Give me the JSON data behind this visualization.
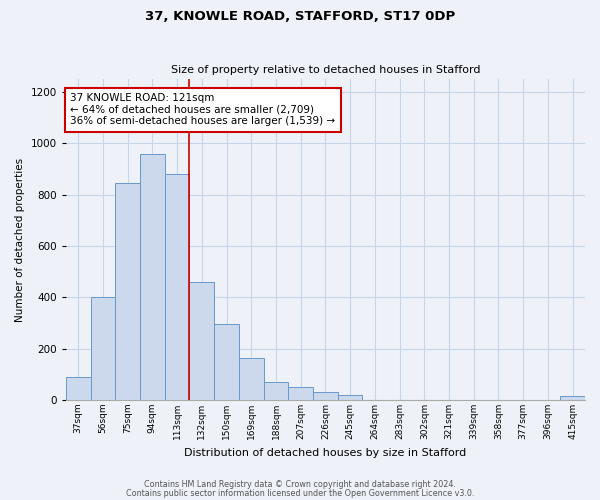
{
  "title": "37, KNOWLE ROAD, STAFFORD, ST17 0DP",
  "subtitle": "Size of property relative to detached houses in Stafford",
  "xlabel": "Distribution of detached houses by size in Stafford",
  "ylabel": "Number of detached properties",
  "bar_labels": [
    "37sqm",
    "56sqm",
    "75sqm",
    "94sqm",
    "113sqm",
    "132sqm",
    "150sqm",
    "169sqm",
    "188sqm",
    "207sqm",
    "226sqm",
    "245sqm",
    "264sqm",
    "283sqm",
    "302sqm",
    "321sqm",
    "339sqm",
    "358sqm",
    "377sqm",
    "396sqm",
    "415sqm"
  ],
  "bar_heights": [
    90,
    400,
    845,
    960,
    880,
    460,
    295,
    165,
    70,
    50,
    30,
    20,
    0,
    0,
    0,
    0,
    0,
    0,
    0,
    0,
    15
  ],
  "bar_color": "#ccd9ed",
  "bar_edge_color": "#6699cc",
  "vline_x_index": 5,
  "vline_color": "#cc0000",
  "annotation_text": "37 KNOWLE ROAD: 121sqm\n← 64% of detached houses are smaller (2,709)\n36% of semi-detached houses are larger (1,539) →",
  "annotation_box_color": "white",
  "annotation_box_edge": "#cc0000",
  "ylim": [
    0,
    1250
  ],
  "yticks": [
    0,
    200,
    400,
    600,
    800,
    1000,
    1200
  ],
  "footnote1": "Contains HM Land Registry data © Crown copyright and database right 2024.",
  "footnote2": "Contains public sector information licensed under the Open Government Licence v3.0.",
  "bg_color": "#eef2f8",
  "grid_color": "#c8d4e8",
  "title_fontsize": 9.5,
  "subtitle_fontsize": 8.0,
  "ylabel_fontsize": 7.5,
  "xlabel_fontsize": 8.0,
  "ytick_fontsize": 7.5,
  "xtick_fontsize": 6.5,
  "annot_fontsize": 7.5,
  "footnote_fontsize": 5.8
}
